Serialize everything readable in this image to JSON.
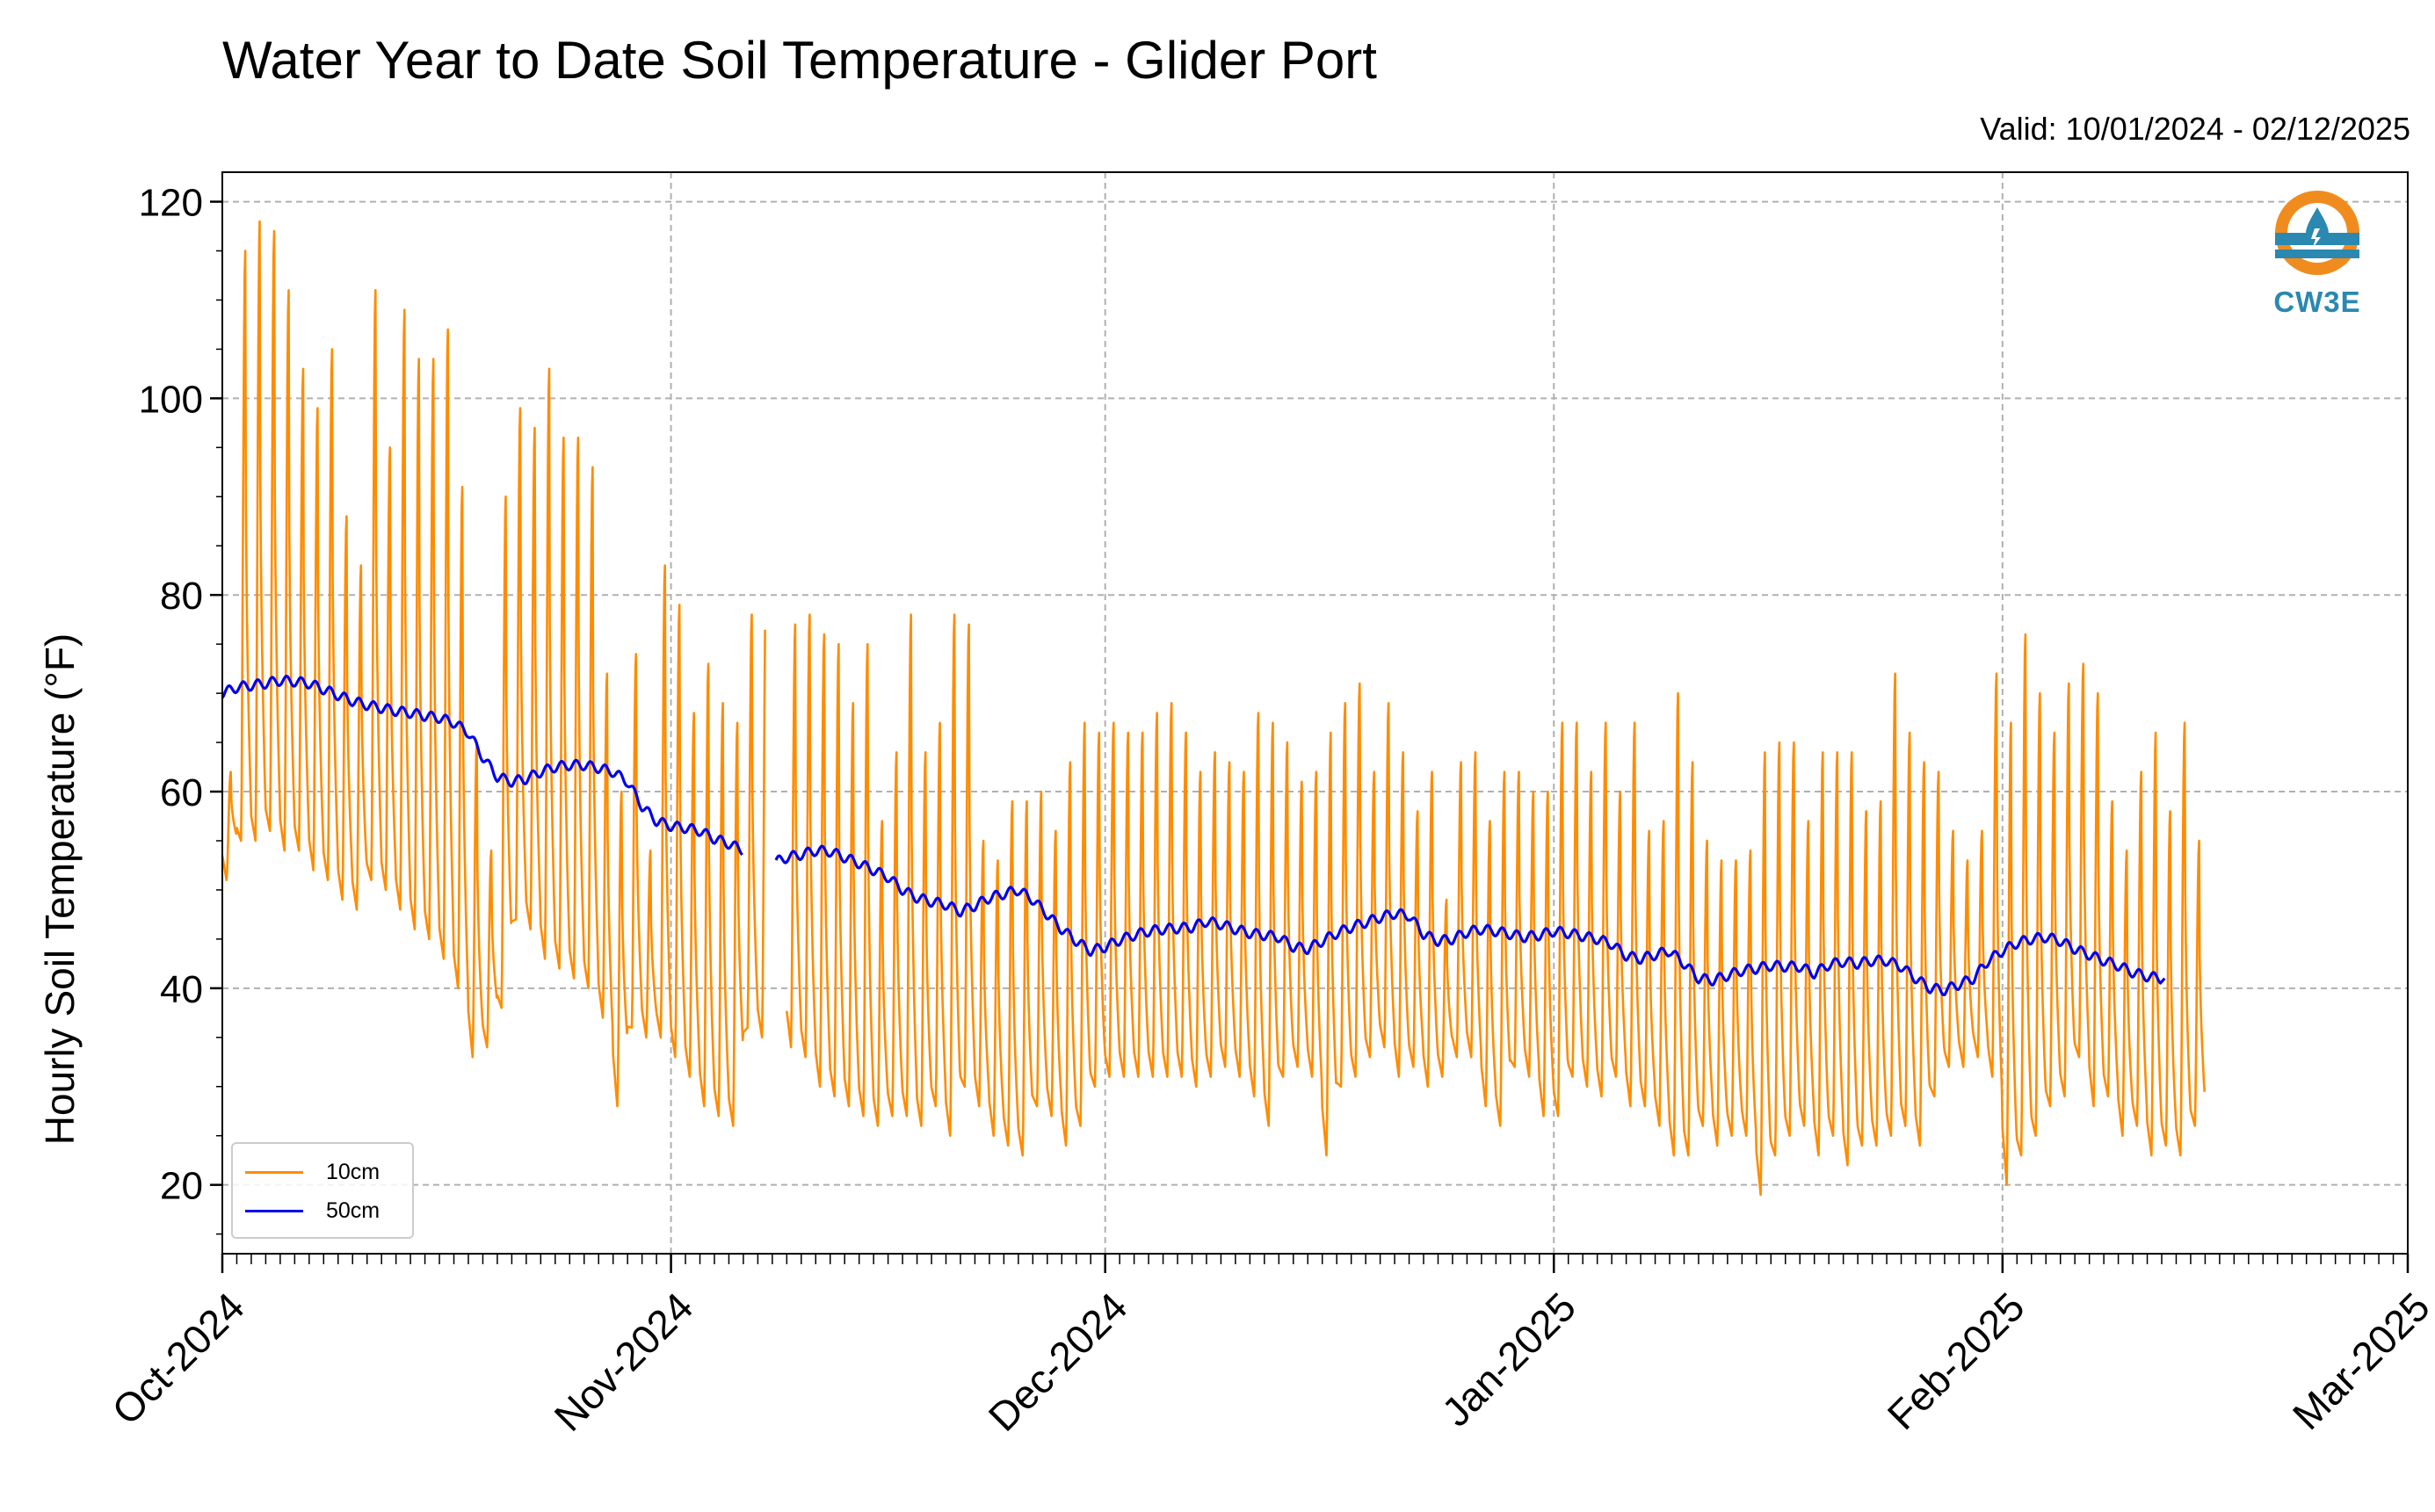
{
  "title": "Water Year to Date Soil Temperature - Glider Port",
  "valid_text": "Valid: 10/01/2024 - 02/12/2025",
  "logo": {
    "icon": "cw3e-water-drop-logo-icon",
    "text": "CW3E",
    "color": "#2b88b0",
    "accent": "#f08c1e"
  },
  "colors": {
    "series_10cm": "#ff8c00",
    "series_50cm": "#0000ee",
    "grid": "#b0b0b0"
  },
  "chart_data": {
    "type": "line",
    "title": "Water Year to Date Soil Temperature - Glider Port",
    "xlabel": "",
    "ylabel": "Hourly Soil Temperature ($^\\circ$F)",
    "ylabel_display": "Hourly Soil Temperature (°F)",
    "xlim": [
      "2024-10-01",
      "2025-03-01"
    ],
    "ylim": [
      13,
      123
    ],
    "yticks": [
      20,
      40,
      60,
      80,
      100,
      120
    ],
    "xtick_labels": [
      "Oct-2024",
      "Nov-2024",
      "Dec-2024",
      "Jan-2025",
      "Feb-2025",
      "Mar-2025"
    ],
    "grid": true,
    "legend_position": "lower-left",
    "series": [
      {
        "name": "10cm",
        "color": "#ff8c00",
        "daily_dates_start": "2024-10-01",
        "daily_max": [
          62,
          115,
          118,
          117,
          111,
          103,
          99,
          105,
          88,
          83,
          111,
          95,
          109,
          104,
          104,
          107,
          91,
          65,
          54,
          90,
          99,
          97,
          103,
          96,
          96,
          93,
          72,
          60,
          74,
          54,
          83,
          79,
          68,
          73,
          69,
          67,
          78,
          84,
          84,
          77,
          78,
          76,
          75,
          69,
          75,
          57,
          64,
          78,
          64,
          67,
          78,
          77,
          55,
          53,
          59,
          59,
          60,
          56,
          63,
          67,
          66,
          67,
          66,
          66,
          68,
          69,
          66,
          62,
          64,
          63,
          62,
          68,
          67,
          65,
          61,
          62,
          66,
          69,
          71,
          62,
          69,
          64,
          58,
          62,
          49,
          63,
          64,
          57,
          62,
          62,
          60,
          60,
          67,
          67,
          62,
          67,
          60,
          67,
          56,
          57,
          70,
          63,
          55,
          53,
          53,
          54,
          64,
          65,
          65,
          57,
          64,
          64,
          64,
          58,
          59,
          72,
          66,
          63,
          62,
          56,
          53,
          56,
          72,
          67,
          76,
          70,
          66,
          71,
          73,
          70,
          59,
          54,
          62,
          66,
          58,
          67,
          55
        ],
        "daily_min": [
          51,
          55,
          55,
          56,
          54,
          54,
          52,
          51,
          49,
          48,
          51,
          50,
          48,
          46,
          45,
          43,
          40,
          33,
          34,
          38,
          47,
          46,
          43,
          42,
          41,
          40,
          37,
          28,
          36,
          35,
          35,
          33,
          31,
          28,
          27,
          26,
          36,
          35,
          38,
          34,
          33,
          30,
          29,
          28,
          27,
          26,
          27,
          27,
          26,
          28,
          25,
          30,
          28,
          25,
          24,
          23,
          28,
          27,
          24,
          26,
          30,
          31,
          31,
          31,
          31,
          31,
          31,
          30,
          31,
          32,
          31,
          29,
          26,
          31,
          32,
          31,
          23,
          30,
          31,
          33,
          34,
          31,
          32,
          30,
          31,
          33,
          33,
          28,
          26,
          32,
          31,
          27,
          27,
          31,
          30,
          29,
          31,
          28,
          28,
          26,
          23,
          23,
          26,
          24,
          25,
          25,
          19,
          23,
          25,
          26,
          23,
          25,
          22,
          24,
          24,
          25,
          26,
          24,
          29,
          32,
          32,
          33,
          31,
          20,
          23,
          25,
          28,
          29,
          33,
          28,
          29,
          25,
          26,
          23,
          24,
          23,
          26
        ],
        "gap": [
          "2024-11-07T12:00",
          "2024-11-09T00:00"
        ]
      },
      {
        "name": "50cm",
        "color": "#0000ee",
        "knots": [
          [
            0,
            70.0
          ],
          [
            1,
            70.6
          ],
          [
            2,
            70.8
          ],
          [
            3,
            71.0
          ],
          [
            4,
            71.3
          ],
          [
            5,
            71.2
          ],
          [
            6,
            71.0
          ],
          [
            7,
            70.4
          ],
          [
            8,
            69.8
          ],
          [
            9,
            69.2
          ],
          [
            10,
            68.8
          ],
          [
            11,
            68.5
          ],
          [
            12,
            68.2
          ],
          [
            13,
            68.0
          ],
          [
            14,
            67.7
          ],
          [
            15,
            67.5
          ],
          [
            16,
            67.0
          ],
          [
            17,
            66.0
          ],
          [
            18,
            63.5
          ],
          [
            19,
            61.5
          ],
          [
            20,
            61.0
          ],
          [
            21,
            61.3
          ],
          [
            22,
            62.0
          ],
          [
            23,
            62.5
          ],
          [
            24,
            62.7
          ],
          [
            25,
            62.7
          ],
          [
            26,
            62.4
          ],
          [
            27,
            62.0
          ],
          [
            28,
            61.0
          ],
          [
            29,
            58.5
          ],
          [
            30,
            57.0
          ],
          [
            31,
            56.5
          ],
          [
            32,
            56.3
          ],
          [
            33,
            56.0
          ],
          [
            34,
            55.2
          ],
          [
            35,
            54.7
          ],
          [
            36,
            54.0
          ],
          [
            38,
            52.7
          ],
          [
            39,
            53.3
          ],
          [
            40,
            53.6
          ],
          [
            41,
            54.0
          ],
          [
            42,
            53.9
          ],
          [
            43,
            53.3
          ],
          [
            44,
            52.7
          ],
          [
            45,
            52.0
          ],
          [
            46,
            51.3
          ],
          [
            47,
            50.0
          ],
          [
            48,
            49.2
          ],
          [
            49,
            48.8
          ],
          [
            50,
            48.5
          ],
          [
            51,
            47.8
          ],
          [
            52,
            48.4
          ],
          [
            53,
            49.2
          ],
          [
            54,
            49.6
          ],
          [
            55,
            50.0
          ],
          [
            56,
            49.0
          ],
          [
            57,
            47.5
          ],
          [
            58,
            46.0
          ],
          [
            59,
            44.8
          ],
          [
            60,
            43.8
          ],
          [
            61,
            44.2
          ],
          [
            62,
            44.9
          ],
          [
            63,
            45.4
          ],
          [
            64,
            45.8
          ],
          [
            65,
            46.0
          ],
          [
            66,
            46.1
          ],
          [
            67,
            46.2
          ],
          [
            68,
            46.8
          ],
          [
            69,
            46.5
          ],
          [
            70,
            46.0
          ],
          [
            71,
            45.6
          ],
          [
            72,
            45.4
          ],
          [
            73,
            45.2
          ],
          [
            74,
            44.2
          ],
          [
            75,
            44.0
          ],
          [
            76,
            44.8
          ],
          [
            77,
            45.6
          ],
          [
            78,
            46.2
          ],
          [
            79,
            46.7
          ],
          [
            80,
            47.2
          ],
          [
            81,
            47.6
          ],
          [
            82,
            47.4
          ],
          [
            83,
            45.5
          ],
          [
            84,
            44.8
          ],
          [
            85,
            45.0
          ],
          [
            86,
            45.7
          ],
          [
            87,
            46.0
          ],
          [
            88,
            45.8
          ],
          [
            89,
            45.5
          ],
          [
            90,
            45.2
          ],
          [
            91,
            45.4
          ],
          [
            92,
            45.8
          ],
          [
            93,
            45.6
          ],
          [
            94,
            45.3
          ],
          [
            95,
            45.0
          ],
          [
            96,
            44.5
          ],
          [
            97,
            43.3
          ],
          [
            98,
            43.0
          ],
          [
            99,
            43.4
          ],
          [
            100,
            43.8
          ],
          [
            101,
            42.5
          ],
          [
            102,
            41.0
          ],
          [
            103,
            40.8
          ],
          [
            104,
            41.3
          ],
          [
            105,
            41.8
          ],
          [
            106,
            42.0
          ],
          [
            107,
            42.3
          ],
          [
            108,
            42.2
          ],
          [
            109,
            42.2
          ],
          [
            110,
            41.5
          ],
          [
            111,
            42.4
          ],
          [
            112,
            42.7
          ],
          [
            113,
            42.5
          ],
          [
            114,
            42.8
          ],
          [
            115,
            42.8
          ],
          [
            116,
            42.2
          ],
          [
            117,
            41.0
          ],
          [
            118,
            40.0
          ],
          [
            119,
            39.8
          ],
          [
            120,
            40.4
          ],
          [
            121,
            41.0
          ],
          [
            122,
            42.8
          ],
          [
            123,
            43.8
          ],
          [
            124,
            44.6
          ],
          [
            125,
            45.0
          ],
          [
            126,
            45.2
          ],
          [
            127,
            44.8
          ],
          [
            128,
            44.0
          ],
          [
            129,
            43.4
          ],
          [
            130,
            42.8
          ],
          [
            131,
            42.3
          ],
          [
            132,
            41.6
          ],
          [
            133,
            41.2
          ],
          [
            134,
            41.0
          ]
        ],
        "gap": [
          "2024-11-07T12:00",
          "2024-11-08T06:00"
        ]
      }
    ]
  }
}
